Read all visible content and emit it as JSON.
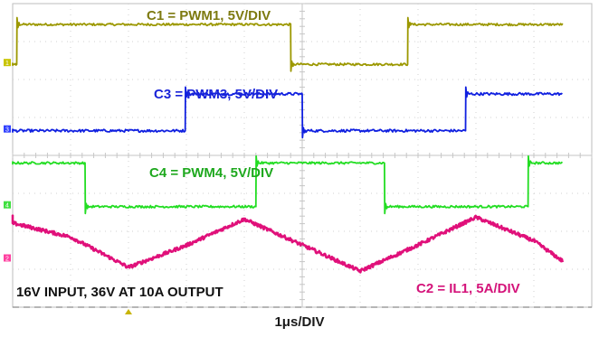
{
  "chart_data": {
    "type": "line",
    "title": "",
    "x": [
      -0.5,
      1.0,
      2.0,
      3.0,
      4.0,
      5.0,
      6.0,
      7.0,
      8.0,
      9.0,
      9.5
    ],
    "xlabel": "1μs/DIV",
    "ylabel": "",
    "grid": true,
    "grid_divisions": {
      "horizontal": 10,
      "vertical": 8
    },
    "annotation": "16V INPUT, 36V AT 10A OUTPUT",
    "series": [
      {
        "name": "C1 = PWM1, 5V/DIV",
        "label": "C1 = PWM1, 5V/DIV",
        "color": "#9c9800",
        "label_color": "#7d7a10",
        "marker_color": "#c8c400",
        "marker_text": "1",
        "scale": "5V/DIV",
        "kind": "square",
        "high_low_div": [
          7.45,
          6.4
        ],
        "edges_div": [
          0.07,
          4.8,
          6.82
        ],
        "start_level": "low",
        "noise_div": 0.03
      },
      {
        "name": "C3 = PWM3, 5V/DIV",
        "label": "C3 = PWM3, 5V/DIV",
        "color": "#1020e0",
        "label_color": "#1a24d8",
        "marker_color": "#3040ff",
        "marker_text": "3",
        "scale": "5V/DIV",
        "kind": "square",
        "high_low_div": [
          5.62,
          4.65
        ],
        "edges_div": [
          2.98,
          5.0,
          7.82
        ],
        "start_level": "low",
        "noise_div": 0.035
      },
      {
        "name": "C4 = PWM4, 5V/DIV",
        "label": "C4 = PWM4, 5V/DIV",
        "color": "#22dd22",
        "label_color": "#1ea81e",
        "marker_color": "#40e040",
        "marker_text": "4",
        "scale": "5V/DIV",
        "kind": "square",
        "high_low_div": [
          3.8,
          2.65
        ],
        "edges_div": [
          1.25,
          4.2,
          6.42,
          8.9
        ],
        "start_level": "high",
        "noise_div": 0.03
      },
      {
        "name": "C2 = IL1, 5A/DIV",
        "label": "C2 = IL1, 5A/DIV",
        "color": "#e0107a",
        "label_color": "#d4137a",
        "marker_color": "#ff40a0",
        "marker_text": "2",
        "scale": "5A/DIV",
        "kind": "triangle",
        "values_div": [
          2.4,
          1.85,
          1.05,
          1.63,
          2.32,
          1.64,
          0.95,
          1.64,
          2.37,
          1.75,
          1.21
        ],
        "noise_div": 0.045
      }
    ]
  }
}
